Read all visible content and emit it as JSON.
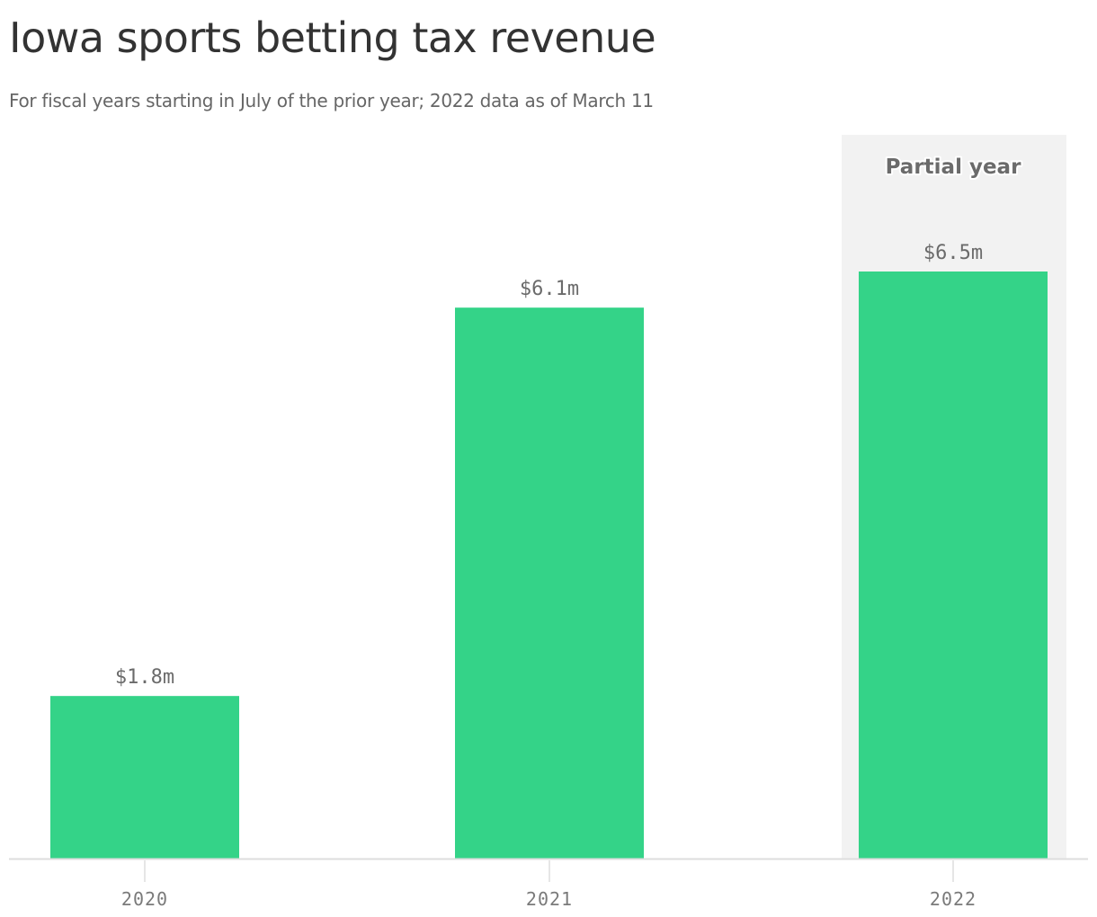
{
  "chart_data": {
    "type": "bar",
    "title": "Iowa sports betting tax revenue",
    "subtitle": "For fiscal years starting in July of the prior year; 2022 data as of March 11",
    "categories": [
      "2020",
      "2021",
      "2022"
    ],
    "values": [
      1.8,
      6.1,
      6.5
    ],
    "value_labels": [
      "$1.8m",
      "$6.1m",
      "$6.5m"
    ],
    "unit": "$m",
    "ylim": [
      0,
      7.5
    ],
    "grid": false,
    "highlight": {
      "category": "2022",
      "label": "Partial year",
      "color": "#f2f2f2"
    },
    "colors": {
      "bar": "#34d388",
      "axis": "#dddddd",
      "tick": "#cccccc"
    }
  }
}
